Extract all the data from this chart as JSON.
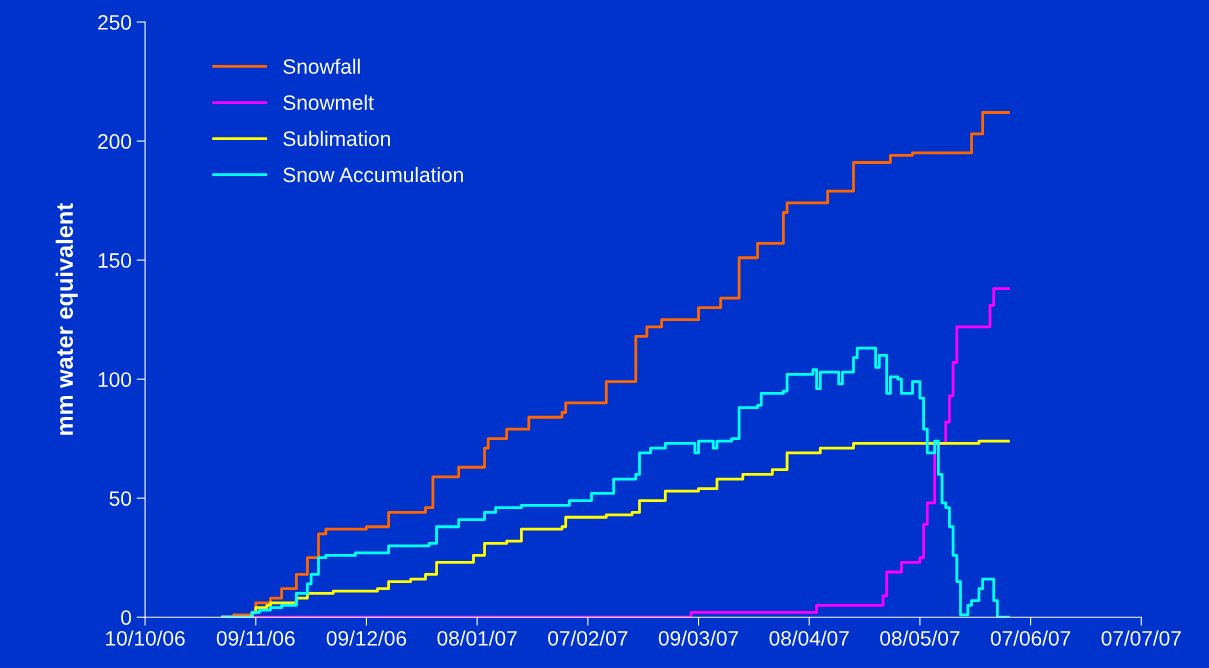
{
  "chart_data": {
    "type": "step",
    "ylabel": "mm water equivalent",
    "xlim": [
      "2006-10-10",
      "2007-07-07"
    ],
    "xticks": [
      {
        "value": "2006-10-10",
        "label": "10/10/06"
      },
      {
        "value": "2006-11-09",
        "label": "09/11/06"
      },
      {
        "value": "2006-12-09",
        "label": "09/12/06"
      },
      {
        "value": "2007-01-08",
        "label": "08/01/07"
      },
      {
        "value": "2007-02-07",
        "label": "07/02/07"
      },
      {
        "value": "2007-03-09",
        "label": "09/03/07"
      },
      {
        "value": "2007-04-08",
        "label": "08/04/07"
      },
      {
        "value": "2007-05-08",
        "label": "08/05/07"
      },
      {
        "value": "2007-06-07",
        "label": "07/06/07"
      },
      {
        "value": "2007-07-07",
        "label": "07/07/07"
      }
    ],
    "ylim": [
      0,
      250
    ],
    "yticks": [
      0,
      50,
      100,
      150,
      200,
      250
    ],
    "grid": false,
    "legend": "top left",
    "series": [
      {
        "name": "Snowfall",
        "color": "#ff6600",
        "x": [
          "2006-10-31",
          "2006-11-03",
          "2006-11-08",
          "2006-11-09",
          "2006-11-13",
          "2006-11-16",
          "2006-11-20",
          "2006-11-23",
          "2006-11-26",
          "2006-11-28",
          "2006-12-09",
          "2006-12-15",
          "2006-12-25",
          "2006-12-27",
          "2007-01-03",
          "2007-01-10",
          "2007-01-11",
          "2007-01-16",
          "2007-01-22",
          "2007-01-31",
          "2007-02-01",
          "2007-02-12",
          "2007-02-20",
          "2007-02-23",
          "2007-02-27",
          "2007-03-09",
          "2007-03-15",
          "2007-03-20",
          "2007-03-25",
          "2007-04-01",
          "2007-04-02",
          "2007-04-13",
          "2007-04-20",
          "2007-04-30",
          "2007-05-06",
          "2007-05-21",
          "2007-05-22",
          "2007-05-25",
          "2007-06-01"
        ],
        "values": [
          0,
          1,
          2,
          6,
          8,
          12,
          18,
          25,
          35,
          37,
          38,
          44,
          46,
          59,
          63,
          71,
          75,
          79,
          84,
          86,
          90,
          99,
          118,
          122,
          125,
          130,
          134,
          151,
          157,
          170,
          174,
          179,
          191,
          194,
          195,
          195,
          203,
          212,
          212
        ]
      },
      {
        "name": "Snowmelt",
        "color": "#ff00ff",
        "x": [
          "2006-10-31",
          "2007-03-07",
          "2007-04-10",
          "2007-04-28",
          "2007-04-29",
          "2007-05-03",
          "2007-05-08",
          "2007-05-09",
          "2007-05-10",
          "2007-05-12",
          "2007-05-13",
          "2007-05-15",
          "2007-05-16",
          "2007-05-17",
          "2007-05-18",
          "2007-05-27",
          "2007-05-28",
          "2007-06-01"
        ],
        "values": [
          0,
          2,
          5,
          9,
          19,
          23,
          25,
          39,
          48,
          71,
          73,
          82,
          93,
          107,
          122,
          131,
          138,
          138
        ]
      },
      {
        "name": "Sublimation",
        "color": "#ffff00",
        "x": [
          "2006-10-31",
          "2006-11-08",
          "2006-11-09",
          "2006-11-12",
          "2006-11-13",
          "2006-11-20",
          "2006-11-23",
          "2006-11-30",
          "2006-12-12",
          "2006-12-15",
          "2006-12-21",
          "2006-12-25",
          "2006-12-28",
          "2007-01-07",
          "2007-01-10",
          "2007-01-16",
          "2007-01-20",
          "2007-01-31",
          "2007-02-01",
          "2007-02-12",
          "2007-02-19",
          "2007-02-21",
          "2007-02-28",
          "2007-03-09",
          "2007-03-14",
          "2007-03-21",
          "2007-03-29",
          "2007-04-02",
          "2007-04-11",
          "2007-04-20",
          "2007-05-24",
          "2007-06-01"
        ],
        "values": [
          0,
          2,
          4,
          5,
          6,
          8,
          10,
          11,
          12,
          15,
          16,
          18,
          23,
          26,
          31,
          32,
          37,
          38,
          42,
          43,
          44,
          49,
          53,
          54,
          58,
          60,
          62,
          69,
          71,
          73,
          74,
          74
        ]
      },
      {
        "name": "Snow Accumulation",
        "color": "#00ffff",
        "x": [
          "2006-10-31",
          "2006-11-08",
          "2006-11-10",
          "2006-11-13",
          "2006-11-16",
          "2006-11-20",
          "2006-11-23",
          "2006-11-24",
          "2006-11-26",
          "2006-11-28",
          "2006-12-06",
          "2006-12-15",
          "2006-12-26",
          "2006-12-28",
          "2007-01-03",
          "2007-01-10",
          "2007-01-13",
          "2007-01-20",
          "2007-02-02",
          "2007-02-08",
          "2007-02-14",
          "2007-02-20",
          "2007-02-21",
          "2007-02-24",
          "2007-02-28",
          "2007-03-08",
          "2007-03-09",
          "2007-03-12",
          "2007-03-13",
          "2007-03-14",
          "2007-03-18",
          "2007-03-20",
          "2007-03-25",
          "2007-03-26",
          "2007-04-01",
          "2007-04-02",
          "2007-04-09",
          "2007-04-10",
          "2007-04-11",
          "2007-04-16",
          "2007-04-17",
          "2007-04-20",
          "2007-04-21",
          "2007-04-26",
          "2007-04-27",
          "2007-04-29",
          "2007-04-30",
          "2007-05-02",
          "2007-05-03",
          "2007-05-06",
          "2007-05-08",
          "2007-05-09",
          "2007-05-10",
          "2007-05-12",
          "2007-05-13",
          "2007-05-14",
          "2007-05-15",
          "2007-05-16",
          "2007-05-17",
          "2007-05-18",
          "2007-05-19",
          "2007-05-21",
          "2007-05-22",
          "2007-05-24",
          "2007-05-25",
          "2007-05-28",
          "2007-05-29",
          "2007-06-01"
        ],
        "values": [
          0,
          2,
          3,
          4,
          5,
          10,
          14,
          18,
          25,
          26,
          27,
          30,
          31,
          38,
          41,
          44,
          46,
          47,
          49,
          52,
          58,
          60,
          69,
          71,
          73,
          69,
          74,
          74,
          71,
          74,
          75,
          88,
          89,
          94,
          95,
          102,
          104,
          96,
          103,
          98,
          103,
          109,
          113,
          105,
          110,
          94,
          101,
          100,
          94,
          99,
          92,
          79,
          69,
          74,
          60,
          48,
          46,
          38,
          26,
          15,
          1,
          5,
          7,
          12,
          16,
          7,
          0,
          0
        ]
      }
    ]
  }
}
